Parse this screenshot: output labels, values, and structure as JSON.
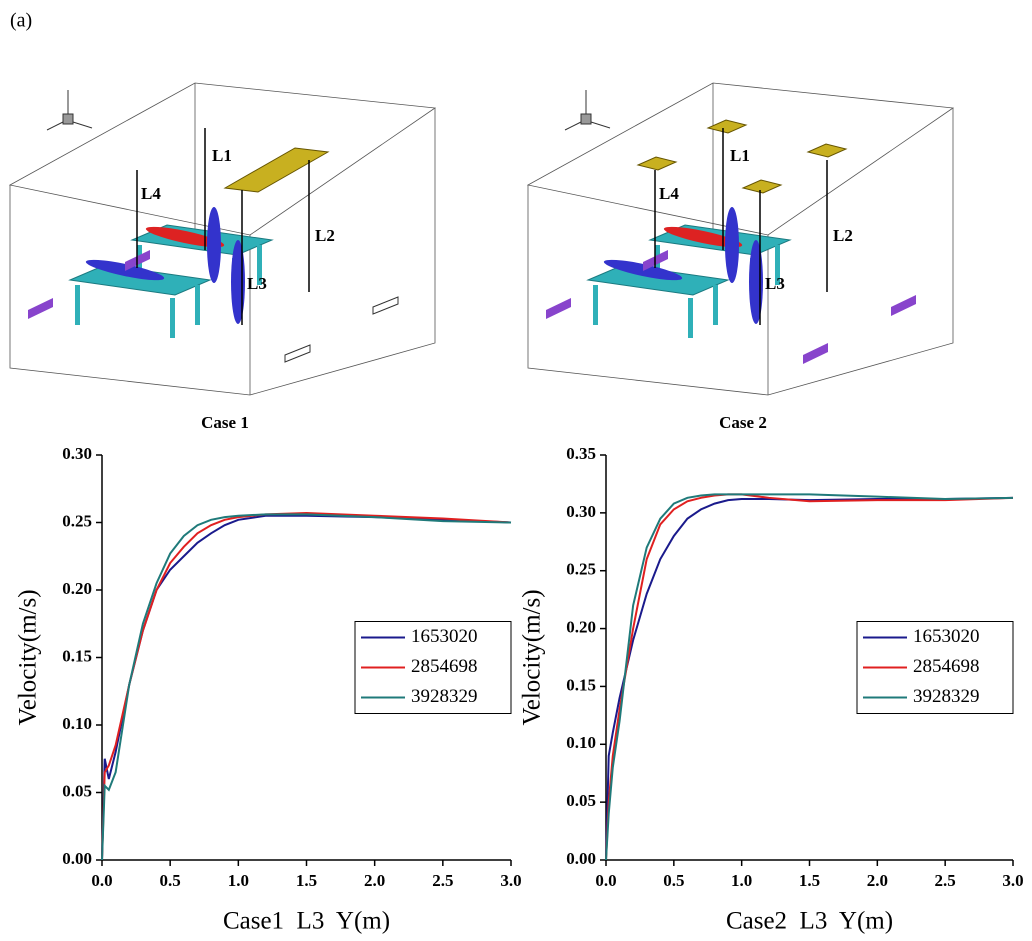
{
  "panel_label": "(a)",
  "illustrations": [
    {
      "caption": "Case 1",
      "line_labels": [
        "L1",
        "L2",
        "L3",
        "L4"
      ]
    },
    {
      "caption": "Case 2",
      "line_labels": [
        "L1",
        "L2",
        "L3",
        "L4"
      ]
    }
  ],
  "chart_data": [
    {
      "type": "line",
      "x_label": "Case1  L3  Y(m)",
      "y_label": "Velocity(m/s)",
      "x": [
        0,
        0.02,
        0.05,
        0.1,
        0.2,
        0.3,
        0.4,
        0.5,
        0.6,
        0.7,
        0.8,
        0.9,
        1.0,
        1.2,
        1.5,
        2.0,
        2.5,
        3.0
      ],
      "series": [
        {
          "name": "1653020",
          "color": "#1a1a8c",
          "values": [
            0,
            0.075,
            0.06,
            0.08,
            0.13,
            0.17,
            0.2,
            0.215,
            0.225,
            0.235,
            0.242,
            0.248,
            0.252,
            0.255,
            0.255,
            0.254,
            0.252,
            0.25
          ]
        },
        {
          "name": "2854698",
          "color": "#e02020",
          "values": [
            0,
            0.065,
            0.07,
            0.085,
            0.13,
            0.17,
            0.2,
            0.22,
            0.232,
            0.242,
            0.248,
            0.252,
            0.254,
            0.256,
            0.257,
            0.255,
            0.253,
            0.25
          ]
        },
        {
          "name": "3928329",
          "color": "#1f7a7a",
          "values": [
            0,
            0.055,
            0.052,
            0.065,
            0.13,
            0.175,
            0.205,
            0.227,
            0.24,
            0.248,
            0.252,
            0.254,
            0.255,
            0.256,
            0.256,
            0.254,
            0.251,
            0.25
          ]
        }
      ],
      "xlim": [
        0,
        3.0
      ],
      "xticks": [
        {
          "value": 0,
          "label": "0.0"
        },
        {
          "value": 0.5,
          "label": "0.5"
        },
        {
          "value": 1.0,
          "label": "1.0"
        },
        {
          "value": 1.5,
          "label": "1.5"
        },
        {
          "value": 2.0,
          "label": "2.0"
        },
        {
          "value": 2.5,
          "label": "2.5"
        },
        {
          "value": 3.0,
          "label": "3.0"
        }
      ],
      "ylim": [
        0,
        0.3
      ],
      "yticks": [
        {
          "value": 0,
          "label": "0.00"
        },
        {
          "value": 0.05,
          "label": "0.05"
        },
        {
          "value": 0.1,
          "label": "0.10"
        },
        {
          "value": 0.15,
          "label": "0.15"
        },
        {
          "value": 0.2,
          "label": "0.20"
        },
        {
          "value": 0.25,
          "label": "0.25"
        },
        {
          "value": 0.3,
          "label": "0.30"
        }
      ],
      "legend": "right"
    },
    {
      "type": "line",
      "x_label": "Case2  L3  Y(m)",
      "y_label": "Velocity(m/s)",
      "x": [
        0,
        0.02,
        0.05,
        0.1,
        0.2,
        0.3,
        0.4,
        0.5,
        0.6,
        0.7,
        0.8,
        0.9,
        1.0,
        1.2,
        1.5,
        2.0,
        2.5,
        3.0
      ],
      "series": [
        {
          "name": "1653020",
          "color": "#1a1a8c",
          "values": [
            0,
            0.09,
            0.11,
            0.14,
            0.19,
            0.23,
            0.26,
            0.28,
            0.295,
            0.303,
            0.308,
            0.311,
            0.312,
            0.312,
            0.311,
            0.312,
            0.312,
            0.313
          ]
        },
        {
          "name": "2854698",
          "color": "#e02020",
          "values": [
            0,
            0.05,
            0.09,
            0.13,
            0.2,
            0.26,
            0.29,
            0.303,
            0.31,
            0.313,
            0.315,
            0.316,
            0.316,
            0.313,
            0.31,
            0.311,
            0.311,
            0.313
          ]
        },
        {
          "name": "3928329",
          "color": "#1f7a7a",
          "values": [
            0,
            0.04,
            0.08,
            0.12,
            0.22,
            0.27,
            0.295,
            0.308,
            0.313,
            0.315,
            0.316,
            0.316,
            0.316,
            0.316,
            0.316,
            0.314,
            0.312,
            0.313
          ]
        }
      ],
      "xlim": [
        0,
        3.0
      ],
      "xticks": [
        {
          "value": 0,
          "label": "0.0"
        },
        {
          "value": 0.5,
          "label": "0.5"
        },
        {
          "value": 1.0,
          "label": "1.0"
        },
        {
          "value": 1.5,
          "label": "1.5"
        },
        {
          "value": 2.0,
          "label": "2.0"
        },
        {
          "value": 2.5,
          "label": "2.5"
        },
        {
          "value": 3.0,
          "label": "3.0"
        }
      ],
      "ylim": [
        0,
        0.35
      ],
      "yticks": [
        {
          "value": 0,
          "label": "0.00"
        },
        {
          "value": 0.05,
          "label": "0.05"
        },
        {
          "value": 0.1,
          "label": "0.10"
        },
        {
          "value": 0.15,
          "label": "0.15"
        },
        {
          "value": 0.2,
          "label": "0.20"
        },
        {
          "value": 0.25,
          "label": "0.25"
        },
        {
          "value": 0.3,
          "label": "0.30"
        },
        {
          "value": 0.35,
          "label": "0.35"
        }
      ],
      "legend": "right"
    }
  ]
}
